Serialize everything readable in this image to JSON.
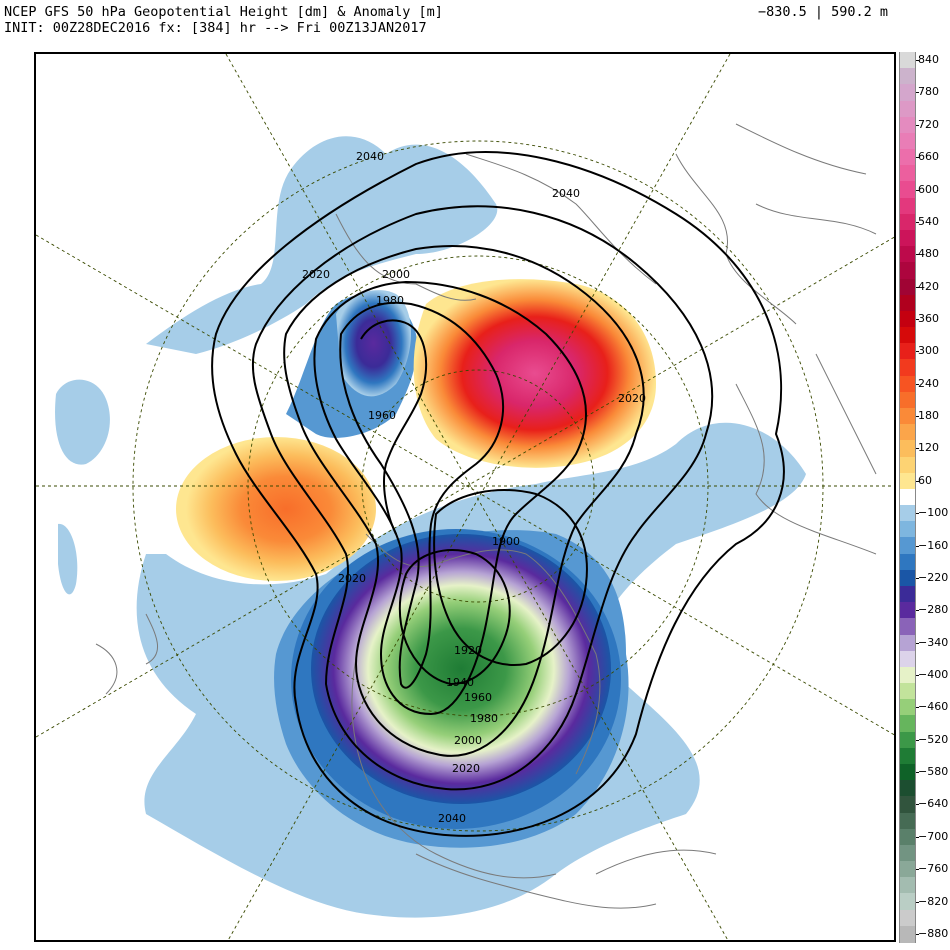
{
  "header": {
    "title_line1": "NCEP GFS 50 hPa Geopotential Height [dm] & Anomaly [m]",
    "title_line2": "INIT: 00Z28DEC2016 fx: [384] hr --> Fri 00Z13JAN2017",
    "range": "−830.5 | 590.2 m"
  },
  "colorbar": {
    "levels": [
      {
        "label": "840",
        "color": "#d9d9d9"
      },
      {
        "label": "",
        "color": "#ccb3cc"
      },
      {
        "label": "780",
        "color": "#d4a6cc"
      },
      {
        "label": "",
        "color": "#dd99c6"
      },
      {
        "label": "720",
        "color": "#e48bbf"
      },
      {
        "label": "",
        "color": "#e97db6"
      },
      {
        "label": "660",
        "color": "#ec6eab"
      },
      {
        "label": "",
        "color": "#ec5f9e"
      },
      {
        "label": "600",
        "color": "#e94c90"
      },
      {
        "label": "",
        "color": "#e3387d"
      },
      {
        "label": "540",
        "color": "#d9266a"
      },
      {
        "label": "",
        "color": "#cc145a"
      },
      {
        "label": "480",
        "color": "#bd0a4b"
      },
      {
        "label": "",
        "color": "#ad053e"
      },
      {
        "label": "420",
        "color": "#a00434"
      },
      {
        "label": "",
        "color": "#b0001e"
      },
      {
        "label": "360",
        "color": "#c40010"
      },
      {
        "label": "",
        "color": "#d60a0a"
      },
      {
        "label": "300",
        "color": "#e8201a"
      },
      {
        "label": "",
        "color": "#f23a1e"
      },
      {
        "label": "240",
        "color": "#f75422"
      },
      {
        "label": "",
        "color": "#f86e2a"
      },
      {
        "label": "180",
        "color": "#fa8a38"
      },
      {
        "label": "",
        "color": "#fba54a"
      },
      {
        "label": "120",
        "color": "#fcbd5c"
      },
      {
        "label": "",
        "color": "#fdd373"
      },
      {
        "label": "60",
        "color": "#fee690"
      },
      {
        "label": "",
        "color": "#ffffff"
      },
      {
        "label": "−100",
        "color": "#a6cde8"
      },
      {
        "label": "",
        "color": "#7eb6df"
      },
      {
        "label": "−160",
        "color": "#5698d2"
      },
      {
        "label": "",
        "color": "#2f77c0"
      },
      {
        "label": "−220",
        "color": "#1a56a6"
      },
      {
        "label": "",
        "color": "#3b2b98"
      },
      {
        "label": "−280",
        "color": "#5a2a9e"
      },
      {
        "label": "",
        "color": "#8a63b8"
      },
      {
        "label": "−340",
        "color": "#b6a3d4"
      },
      {
        "label": "",
        "color": "#dcd3ea"
      },
      {
        "label": "−400",
        "color": "#e6f2c8"
      },
      {
        "label": "",
        "color": "#c2e39b"
      },
      {
        "label": "−460",
        "color": "#96cf79"
      },
      {
        "label": "",
        "color": "#66b55d"
      },
      {
        "label": "−520",
        "color": "#3c9848"
      },
      {
        "label": "",
        "color": "#1f7c35"
      },
      {
        "label": "−580",
        "color": "#0f6228"
      },
      {
        "label": "",
        "color": "#1c4e30"
      },
      {
        "label": "−640",
        "color": "#31543d"
      },
      {
        "label": "",
        "color": "#466b54"
      },
      {
        "label": "−700",
        "color": "#5a806a"
      },
      {
        "label": "",
        "color": "#729482"
      },
      {
        "label": "−760",
        "color": "#8aa898"
      },
      {
        "label": "",
        "color": "#a3bcb0"
      },
      {
        "label": "−820",
        "color": "#bacec5"
      },
      {
        "label": "",
        "color": "#cbcbcb"
      },
      {
        "label": "−880",
        "color": "#b8b8b8"
      }
    ]
  },
  "contours": {
    "labels": [
      "2040",
      "2040",
      "2020",
      "2000",
      "1980",
      "1960",
      "2020",
      "1900",
      "2020",
      "1920",
      "1940",
      "1960",
      "1980",
      "2000",
      "2020",
      "2040"
    ]
  },
  "colors": {
    "contour": "#000000",
    "grid": "#3a4a00",
    "coast": "#7a7a7a",
    "frame": "#000000"
  }
}
